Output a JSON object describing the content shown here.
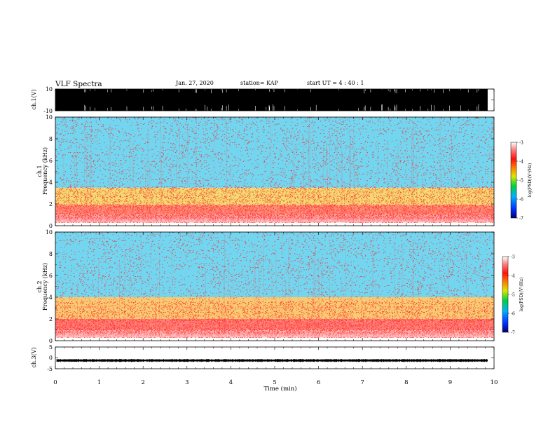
{
  "header": {
    "title": "VLF Spectra",
    "date": "Jan. 27, 2020",
    "station": "station= KAP",
    "start_ut": "start UT =  4 : 40 : 1"
  },
  "chart_data": [
    {
      "type": "line",
      "panel": "waveform-ch1",
      "ylabel": "ch.1(V)",
      "ylim": [
        -10,
        10
      ],
      "ytick_labels": [
        "10",
        "-10"
      ],
      "x_range_min": [
        0,
        9.85
      ],
      "description_values": "dense black waveform saturating near ±10 V"
    },
    {
      "type": "heatmap",
      "panel": "spectrogram-ch1",
      "ylabel": "ch.1",
      "ylabel2": "Frequency (kHz)",
      "ylim": [
        0,
        10
      ],
      "ytick_labels": [
        "0",
        "2",
        "4",
        "6",
        "8",
        "10"
      ],
      "colorbar": {
        "label": "log(PSD)(V²/Hz)",
        "range": [
          -7,
          -3
        ],
        "tick_labels": [
          "-3",
          "-4",
          "-5",
          "-6",
          "-7"
        ]
      },
      "bands": [
        {
          "f_min": 0.3,
          "f_max": 1.1,
          "level": -3.6
        },
        {
          "f_min": 1.1,
          "f_max": 1.9,
          "level": -4.0
        },
        {
          "f_min": 1.9,
          "f_max": 3.5,
          "level": -4.6
        },
        {
          "f_min": 3.5,
          "f_max": 10.0,
          "level": -5.8
        }
      ]
    },
    {
      "type": "heatmap",
      "panel": "spectrogram-ch2",
      "ylabel": "ch.2",
      "ylabel2": "Frequency (kHz)",
      "ylim": [
        0,
        10
      ],
      "ytick_labels": [
        "0",
        "2",
        "4",
        "6",
        "8",
        "10"
      ],
      "colorbar": {
        "label": "log(PSD)(V²/Hz)",
        "range": [
          -7,
          -3
        ],
        "tick_labels": [
          "-3",
          "-4",
          "-5",
          "-6",
          "-7"
        ]
      },
      "bands": [
        {
          "f_min": 0.3,
          "f_max": 1.0,
          "level": -3.5
        },
        {
          "f_min": 1.0,
          "f_max": 2.0,
          "level": -3.9
        },
        {
          "f_min": 2.0,
          "f_max": 4.0,
          "level": -4.5
        },
        {
          "f_min": 4.0,
          "f_max": 10.0,
          "level": -5.8
        }
      ]
    },
    {
      "type": "line",
      "panel": "waveform-ch3",
      "ylabel": "ch.3(V)",
      "ylim": [
        -5,
        5
      ],
      "ytick_labels": [
        "5",
        "0",
        "-5"
      ],
      "baseline": -1.2,
      "xlabel": "Time (min)",
      "xlim": [
        0,
        10
      ],
      "xtick_labels": [
        "0",
        "1",
        "2",
        "3",
        "4",
        "5",
        "6",
        "7",
        "8",
        "9",
        "10"
      ]
    }
  ]
}
